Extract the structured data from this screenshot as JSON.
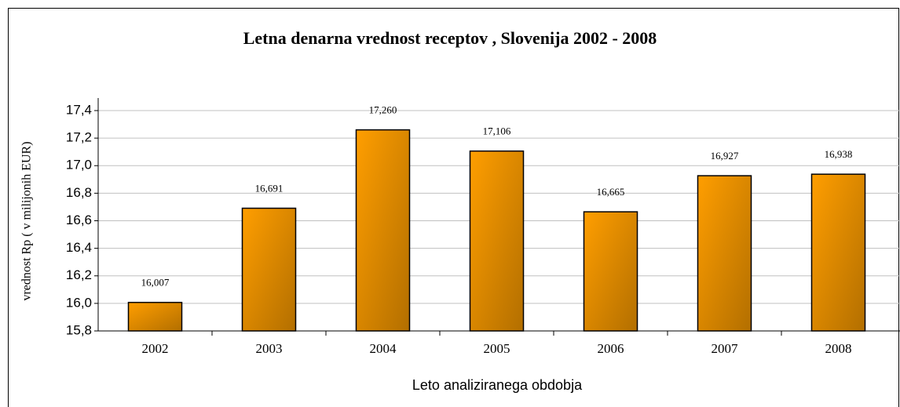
{
  "chart_data": {
    "type": "bar",
    "title": "Letna denarna vrednost receptov , Slovenija 2002 - 2008",
    "x_label": "Leto analiziranega obdobja",
    "y_label": "vrednost Rp ( v milijonih EUR)",
    "categories": [
      "2002",
      "2003",
      "2004",
      "2005",
      "2006",
      "2007",
      "2008"
    ],
    "values": [
      16.007,
      16.691,
      17.26,
      17.106,
      16.665,
      16.927,
      16.938
    ],
    "value_labels": [
      "16,007",
      "16,691",
      "17,260",
      "17,106",
      "16,665",
      "16,927",
      "16,938"
    ],
    "color": "#ff9e00",
    "ylim": [
      15.8,
      17.4
    ],
    "yticks": [
      {
        "value": 15.8,
        "label": "15,8"
      },
      {
        "value": 16.0,
        "label": "16,0"
      },
      {
        "value": 16.2,
        "label": "16,2"
      },
      {
        "value": 16.4,
        "label": "16,4"
      },
      {
        "value": 16.6,
        "label": "16,6"
      },
      {
        "value": 16.8,
        "label": "16,8"
      },
      {
        "value": 17.0,
        "label": "17,0"
      },
      {
        "value": 17.2,
        "label": "17,2"
      },
      {
        "value": 17.4,
        "label": "17,4"
      }
    ],
    "grid": true
  }
}
